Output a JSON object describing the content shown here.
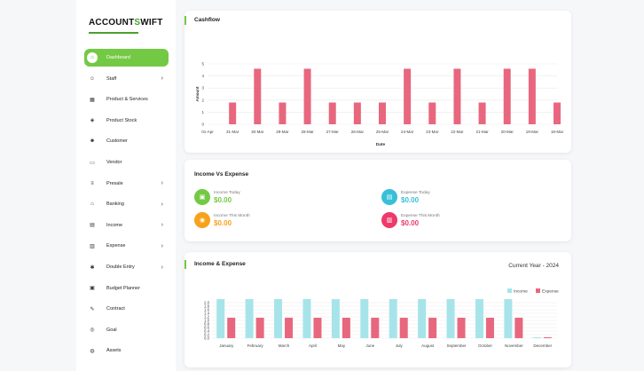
{
  "brand": {
    "name": "ACCOUNT",
    "name_suffix": "WIFT",
    "logo_mark": "S"
  },
  "sidebar": {
    "items": [
      {
        "label": "Dashboard",
        "icon": "home-icon",
        "glyph": "⌂",
        "active": true,
        "chevron": ""
      },
      {
        "label": "Staff",
        "icon": "users-icon",
        "glyph": "☺",
        "active": false,
        "chevron": "›"
      },
      {
        "label": "Product & Services",
        "icon": "box-icon",
        "glyph": "▦",
        "active": false,
        "chevron": ""
      },
      {
        "label": "Product Stock",
        "icon": "cube-icon",
        "glyph": "◈",
        "active": false,
        "chevron": ""
      },
      {
        "label": "Customer",
        "icon": "customer-icon",
        "glyph": "☻",
        "active": false,
        "chevron": ""
      },
      {
        "label": "Vendor",
        "icon": "vendor-icon",
        "glyph": "▭",
        "active": false,
        "chevron": ""
      },
      {
        "label": "Presale",
        "icon": "presale-icon",
        "glyph": "≡",
        "active": false,
        "chevron": "›"
      },
      {
        "label": "Banking",
        "icon": "bank-icon",
        "glyph": "⌂",
        "active": false,
        "chevron": "›"
      },
      {
        "label": "Income",
        "icon": "income-icon",
        "glyph": "▤",
        "active": false,
        "chevron": "›"
      },
      {
        "label": "Expense",
        "icon": "expense-icon",
        "glyph": "▥",
        "active": false,
        "chevron": "›"
      },
      {
        "label": "Double Entry",
        "icon": "double-entry-icon",
        "glyph": "✱",
        "active": false,
        "chevron": "›"
      },
      {
        "label": "Budget Planner",
        "icon": "budget-icon",
        "glyph": "▣",
        "active": false,
        "chevron": ""
      },
      {
        "label": "Contract",
        "icon": "contract-icon",
        "glyph": "✎",
        "active": false,
        "chevron": ""
      },
      {
        "label": "Goal",
        "icon": "goal-icon",
        "glyph": "◎",
        "active": false,
        "chevron": ""
      },
      {
        "label": "Assets",
        "icon": "assets-icon",
        "glyph": "◍",
        "active": false,
        "chevron": ""
      }
    ]
  },
  "cashflow": {
    "title": "Cashflow"
  },
  "income_vs_expense": {
    "title": "Income Vs Expense",
    "stats": [
      {
        "label": "Income Today",
        "value": "$0.00",
        "color": "#74c944",
        "icon": "wallet-icon",
        "glyph": "▣"
      },
      {
        "label": "Expense Today",
        "value": "$0.00",
        "color": "#37c0d8",
        "icon": "receipt-icon",
        "glyph": "▤"
      },
      {
        "label": "Income This Month",
        "value": "$0.00",
        "color": "#f7a21b",
        "icon": "coin-icon",
        "glyph": "◉"
      },
      {
        "label": "Expense This Month",
        "value": "$0.00",
        "color": "#ee3a6b",
        "icon": "invoice-icon",
        "glyph": "▥"
      }
    ]
  },
  "income_expense": {
    "title": "Income & Expense",
    "period": "Current Year - 2024"
  },
  "chart_data": [
    {
      "type": "bar",
      "title": "Cashflow",
      "xlabel": "Date",
      "ylabel": "Amount",
      "ylim": [
        0,
        5
      ],
      "yticks": [
        0,
        1,
        2,
        3,
        4,
        5
      ],
      "grid": true,
      "color": "#e8677e",
      "categories": [
        "01-Apr",
        "31-Mar",
        "30-Mar",
        "29-Mar",
        "28-Mar",
        "27-Mar",
        "26-Mar",
        "25-Mar",
        "24-Mar",
        "23-Mar",
        "22-Mar",
        "21-Mar",
        "20-Mar",
        "19-Mar",
        "18-Mar"
      ],
      "values": [
        0,
        1.8,
        4.6,
        1.8,
        4.6,
        1.8,
        1.8,
        1.8,
        4.6,
        1.8,
        4.6,
        1.8,
        4.6,
        4.6,
        1.8
      ]
    },
    {
      "type": "bar",
      "title": "Income & Expense",
      "ylim": [
        0,
        2.0
      ],
      "yticks": [
        "0.0",
        "0.2",
        "0.4",
        "0.6",
        "0.8",
        "1.0",
        "1.2",
        "1.4",
        "1.6",
        "1.8",
        "2.0"
      ],
      "legend_position": "top-right",
      "grid": true,
      "categories": [
        "January",
        "February",
        "March",
        "April",
        "May",
        "June",
        "July",
        "August",
        "September",
        "October",
        "November",
        "December"
      ],
      "series": [
        {
          "name": "Income",
          "color": "#a6e4ea",
          "values": [
            2.2,
            2.2,
            2.2,
            2.2,
            2.2,
            2.2,
            2.2,
            2.2,
            2.2,
            2.2,
            2.2,
            0.05
          ]
        },
        {
          "name": "Expense",
          "color": "#e8677e",
          "values": [
            1.15,
            1.15,
            1.15,
            1.15,
            1.15,
            1.15,
            1.15,
            1.15,
            1.15,
            1.15,
            1.15,
            0.05
          ]
        }
      ]
    }
  ]
}
